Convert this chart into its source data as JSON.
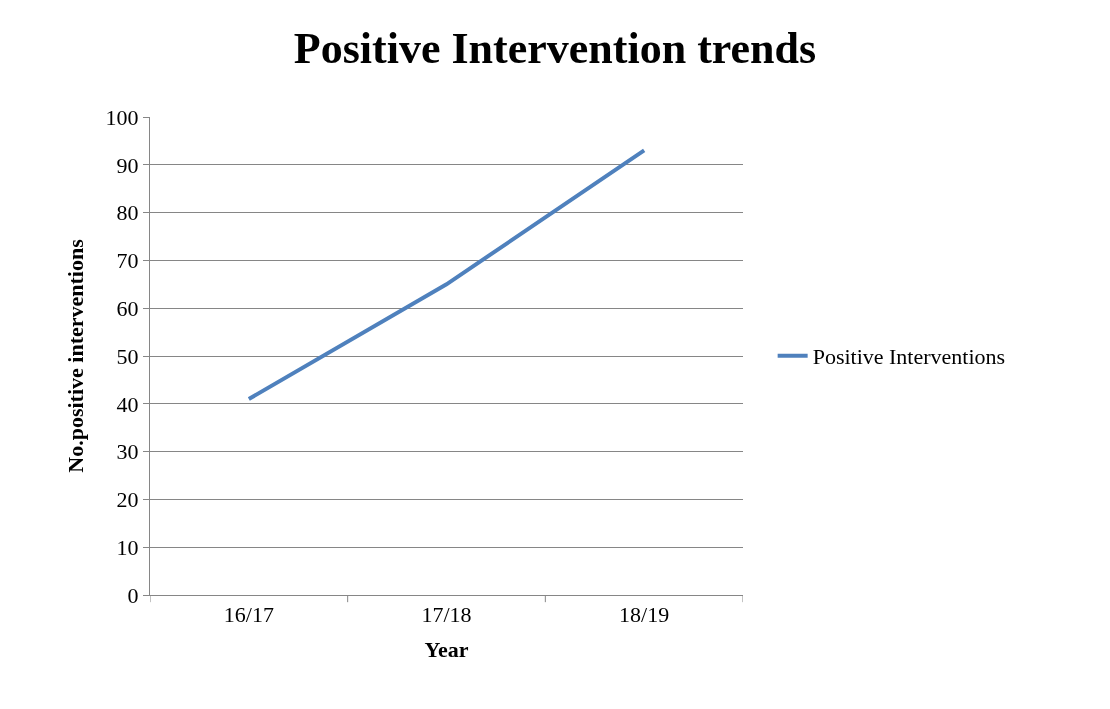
{
  "chart_data": {
    "type": "line",
    "title": "Positive Intervention trends",
    "xlabel": "Year",
    "ylabel": "No.positive interventions",
    "categories": [
      "16/17",
      "17/18",
      "18/19"
    ],
    "series": [
      {
        "name": "Positive Interventions",
        "color": "#4f81bd",
        "values": [
          41,
          65,
          93
        ]
      }
    ],
    "ylim": [
      0,
      100
    ],
    "yticks": [
      0,
      10,
      20,
      30,
      40,
      50,
      60,
      70,
      80,
      90,
      100
    ],
    "grid": "y",
    "legend": "right",
    "marker": "none",
    "line_style": "solid"
  }
}
